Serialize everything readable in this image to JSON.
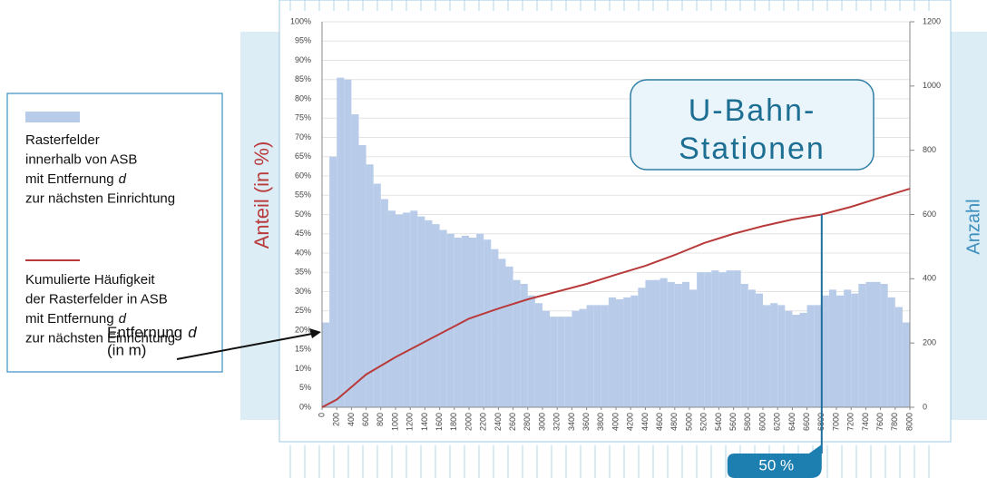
{
  "chart_data": {
    "type": "histogram",
    "bins": [
      0,
      100,
      200,
      300,
      400,
      500,
      600,
      700,
      800,
      900,
      1000,
      1100,
      1200,
      1300,
      1400,
      1500,
      1600,
      1700,
      1800,
      1900,
      2000,
      2100,
      2200,
      2300,
      2400,
      2500,
      2600,
      2700,
      2800,
      2900,
      3000,
      3100,
      3200,
      3300,
      3400,
      3500,
      3600,
      3700,
      3800,
      3900,
      4000,
      4100,
      4200,
      4300,
      4400,
      4500,
      4600,
      4700,
      4800,
      4900,
      5000,
      5100,
      5200,
      5300,
      5400,
      5500,
      5600,
      5700,
      5800,
      5900,
      6000,
      6100,
      6200,
      6300,
      6400,
      6500,
      6600,
      6700,
      6800,
      6900,
      7000,
      7100,
      7200,
      7300,
      7400,
      7500,
      7600,
      7700,
      7800,
      7900,
      8000
    ],
    "counts": [
      264,
      780,
      1026,
      1020,
      912,
      816,
      756,
      696,
      648,
      612,
      600,
      606,
      612,
      594,
      582,
      570,
      552,
      540,
      528,
      534,
      528,
      540,
      522,
      492,
      462,
      438,
      396,
      384,
      348,
      324,
      300,
      282,
      282,
      282,
      300,
      306,
      318,
      318,
      318,
      342,
      336,
      342,
      348,
      372,
      396,
      396,
      402,
      390,
      384,
      390,
      366,
      420,
      420,
      426,
      420,
      426,
      426,
      384,
      366,
      354,
      318,
      324,
      318,
      300,
      288,
      294,
      318,
      318,
      348,
      366,
      348,
      366,
      354,
      384,
      390,
      390,
      384,
      342,
      312,
      264
    ],
    "color": "#b8cce9",
    "line": {
      "color": "#b83a3a",
      "axis": "y",
      "x": [
        0,
        200,
        600,
        1000,
        1600,
        2000,
        2400,
        2800,
        3200,
        3600,
        4000,
        4400,
        4800,
        5200,
        5600,
        6000,
        6400,
        6800,
        7200,
        7600,
        8000
      ],
      "values": [
        0,
        2,
        8.5,
        13,
        19,
        23,
        25.6,
        28,
        30,
        32,
        34.4,
        36.7,
        39.5,
        42.6,
        45,
        47,
        48.7,
        50,
        52,
        54.4,
        56.7
      ]
    },
    "xlim": [
      0,
      8000
    ],
    "xticks": [
      0,
      200,
      400,
      600,
      800,
      1000,
      1200,
      1400,
      1600,
      1800,
      2000,
      2200,
      2400,
      2600,
      2800,
      3000,
      3200,
      3400,
      3600,
      3800,
      4000,
      4200,
      4400,
      4600,
      4800,
      5000,
      5200,
      5400,
      5600,
      5800,
      6000,
      6200,
      6400,
      6600,
      6800,
      7000,
      7200,
      7400,
      7600,
      7800,
      8000
    ],
    "ylim": [
      0,
      100
    ],
    "yticks": [
      {
        "value": 0,
        "label": "0%"
      },
      {
        "value": 5,
        "label": "5%"
      },
      {
        "value": 10,
        "label": "10%"
      },
      {
        "value": 15,
        "label": "15%"
      },
      {
        "value": 20,
        "label": "20%"
      },
      {
        "value": 25,
        "label": "25%"
      },
      {
        "value": 30,
        "label": "30%"
      },
      {
        "value": 35,
        "label": "35%"
      },
      {
        "value": 40,
        "label": "40%"
      },
      {
        "value": 45,
        "label": "45%"
      },
      {
        "value": 50,
        "label": "50%"
      },
      {
        "value": 55,
        "label": "55%"
      },
      {
        "value": 60,
        "label": "60%"
      },
      {
        "value": 65,
        "label": "65%"
      },
      {
        "value": 70,
        "label": "70%"
      },
      {
        "value": 75,
        "label": "75%"
      },
      {
        "value": 80,
        "label": "80%"
      },
      {
        "value": 85,
        "label": "85%"
      },
      {
        "value": 90,
        "label": "90%"
      },
      {
        "value": 95,
        "label": "95%"
      },
      {
        "value": 100,
        "label": "100%"
      }
    ],
    "y2lim": [
      0,
      1200
    ],
    "y2ticks": [
      0,
      200,
      400,
      600,
      800,
      1000,
      1200
    ],
    "grid": true,
    "ylabel": "Anteil (in %)",
    "y2label": "Anzahl",
    "xlabel": {
      "text": "Entfernung",
      "var": "d",
      "unit": "(in m)"
    },
    "annotation": [
      "U-Bahn-",
      "Stationen"
    ],
    "marker": {
      "x": 6800,
      "value": 50,
      "label": "50 %"
    },
    "legend": [
      {
        "lines": [
          "Rasterfelder",
          "innerhalb von ASB",
          [
            "mit Entfernung",
            "d"
          ],
          "zur nächsten Einrichtung"
        ]
      },
      {
        "lines": [
          "Kumulierte Häufigkeit",
          "der Rasterfelder in ASB",
          [
            "mit Entfernung",
            "d"
          ],
          "zur nächsten Einrichtung"
        ]
      }
    ]
  }
}
